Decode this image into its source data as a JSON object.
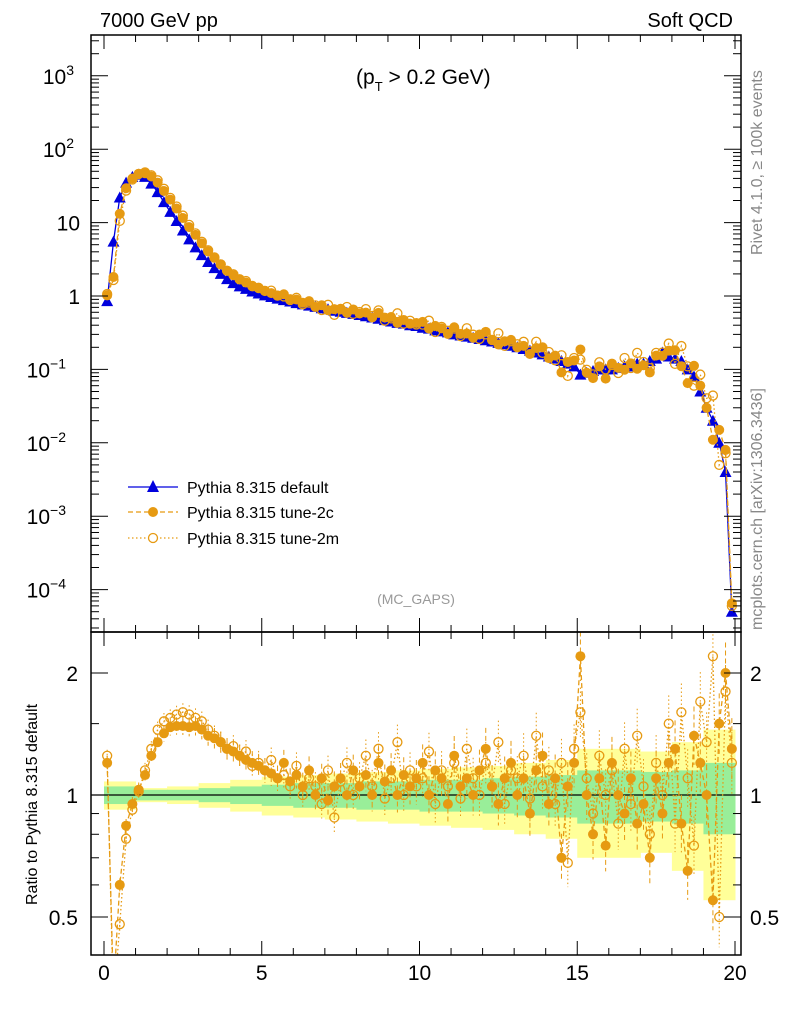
{
  "header": {
    "left": "7000 GeV pp",
    "right": "Soft QCD"
  },
  "cut_label": {
    "main": "(p",
    "sub": "T",
    "rest": " > 0.2 GeV)"
  },
  "analysis_label": "(MC_GAPS)",
  "side_labels": {
    "rivet": "Rivet 4.1.0, ≥ 100k events",
    "mcplots": "mcplots.cern.ch [arXiv:1306.3436]"
  },
  "colors": {
    "default": "#0000dd",
    "tune": "#e69a12",
    "band_yellow": "#ffff99",
    "band_green": "#99ee99"
  },
  "chart_data": {
    "type": "line",
    "xlim": [
      -0.4,
      20.2
    ],
    "ylim_main": [
      3e-05,
      3000
    ],
    "ylim_ratio": [
      0.4,
      2.5
    ],
    "yscale": "log",
    "ylabel_ratio": "Ratio to Pythia 8.315 default",
    "x_ticks": [
      "0",
      "5",
      "10",
      "15",
      "20"
    ],
    "y_ticks_main": [
      {
        "base": "10",
        "exp": "3",
        "value": 1000
      },
      {
        "base": "10",
        "exp": "2",
        "value": 100
      },
      {
        "base": "10",
        "exp": "",
        "value": 10
      },
      {
        "base": "1",
        "exp": "",
        "value": 1
      },
      {
        "base": "10",
        "exp": "−1",
        "value": 0.1
      },
      {
        "base": "10",
        "exp": "−2",
        "value": 0.01
      },
      {
        "base": "10",
        "exp": "−3",
        "value": 0.001
      },
      {
        "base": "10",
        "exp": "−4",
        "value": 0.0001
      }
    ],
    "y_ticks_ratio": [
      {
        "label": "2",
        "value": 2
      },
      {
        "label": "1",
        "value": 1
      },
      {
        "label": "0.5",
        "value": 0.5
      }
    ],
    "legend_placement": "bottom-left",
    "x_start": 0.1,
    "x_step": 0.2,
    "series": [
      {
        "name": "Pythia 8.315 default",
        "marker": "triangle",
        "values": [
          0.85,
          5.5,
          22,
          35,
          42,
          45,
          42,
          34,
          26,
          19,
          14,
          10.5,
          7.8,
          5.9,
          4.6,
          3.6,
          2.9,
          2.4,
          2.0,
          1.7,
          1.5,
          1.35,
          1.25,
          1.15,
          1.08,
          1.02,
          0.97,
          0.92,
          0.88,
          0.84,
          0.8,
          0.77,
          0.74,
          0.71,
          0.68,
          0.66,
          0.63,
          0.61,
          0.59,
          0.57,
          0.55,
          0.53,
          0.51,
          0.49,
          0.47,
          0.45,
          0.43,
          0.42,
          0.4,
          0.39,
          0.37,
          0.36,
          0.34,
          0.33,
          0.32,
          0.3,
          0.29,
          0.28,
          0.27,
          0.26,
          0.25,
          0.24,
          0.23,
          0.22,
          0.21,
          0.2,
          0.19,
          0.18,
          0.17,
          0.16,
          0.15,
          0.14,
          0.13,
          0.12,
          0.11,
          0.085,
          0.09,
          0.095,
          0.1,
          0.1,
          0.1,
          0.105,
          0.11,
          0.11,
          0.12,
          0.12,
          0.13,
          0.14,
          0.17,
          0.15,
          0.14,
          0.13,
          0.1,
          0.08,
          0.05,
          0.03,
          0.02,
          0.01,
          0.004,
          5e-05
        ]
      },
      {
        "name": "Pythia 8.315 tune-2c",
        "marker": "filled-circle",
        "ratio": [
          1.2,
          0.33,
          0.6,
          0.84,
          0.95,
          1.03,
          1.12,
          1.25,
          1.35,
          1.42,
          1.47,
          1.48,
          1.48,
          1.47,
          1.48,
          1.45,
          1.4,
          1.38,
          1.35,
          1.3,
          1.28,
          1.25,
          1.22,
          1.2,
          1.18,
          1.15,
          1.13,
          1.1,
          1.2,
          1.08,
          1.12,
          1.05,
          1.15,
          1.0,
          1.1,
          0.97,
          1.05,
          1.1,
          1.0,
          1.15,
          1.05,
          1.12,
          1.0,
          1.2,
          1.08,
          1.15,
          1.0,
          1.12,
          1.05,
          1.1,
          1.2,
          1.0,
          1.15,
          1.1,
          0.95,
          1.25,
          1.05,
          1.1,
          1.0,
          1.15,
          1.3,
          1.05,
          0.95,
          1.1,
          1.2,
          1.0,
          1.1,
          0.9,
          1.15,
          1.25,
          0.95,
          1.1,
          0.7,
          1.05,
          1.2,
          2.2,
          1.0,
          0.8,
          1.1,
          0.75,
          1.2,
          1.0,
          0.9,
          1.1,
          0.85,
          0.95,
          0.7,
          1.1,
          0.9,
          1.2,
          1.3,
          0.85,
          0.65,
          1.4,
          1.2,
          1.0,
          0.55,
          1.5,
          2.0,
          1.3
        ]
      },
      {
        "name": "Pythia 8.315 tune-2m",
        "marker": "open-circle",
        "ratio": [
          1.25,
          0.3,
          0.48,
          0.78,
          0.92,
          1.02,
          1.15,
          1.3,
          1.45,
          1.52,
          1.55,
          1.58,
          1.6,
          1.58,
          1.55,
          1.52,
          1.45,
          1.4,
          1.35,
          1.3,
          1.32,
          1.25,
          1.28,
          1.18,
          1.2,
          1.15,
          1.22,
          1.1,
          1.12,
          1.05,
          1.18,
          1.0,
          1.1,
          1.05,
          0.95,
          1.15,
          0.88,
          1.08,
          1.2,
          1.0,
          1.1,
          1.25,
          1.05,
          1.3,
          0.98,
          1.1,
          1.35,
          1.0,
          1.15,
          1.05,
          1.1,
          1.28,
          0.95,
          1.15,
          1.05,
          1.2,
          0.98,
          1.3,
          1.1,
          1.0,
          1.2,
          1.05,
          1.35,
          0.95,
          1.15,
          1.1,
          1.25,
          0.98,
          1.4,
          1.05,
          1.15,
          0.95,
          1.2,
          0.68,
          1.3,
          1.6,
          1.1,
          0.9,
          1.25,
          1.0,
          1.15,
          0.85,
          1.3,
          0.95,
          1.4,
          1.05,
          0.8,
          1.2,
          1.0,
          1.5,
          0.85,
          1.6,
          1.1,
          0.75,
          1.7,
          1.35,
          2.2,
          0.5,
          1.8,
          1.2
        ]
      }
    ],
    "band_x": [
      0,
      1,
      2,
      3,
      4,
      5,
      6,
      7,
      8,
      9,
      10,
      11,
      12,
      13,
      14,
      15,
      16,
      17,
      18,
      19,
      20
    ],
    "band_green_halfwidth": [
      0.05,
      0.03,
      0.03,
      0.04,
      0.05,
      0.06,
      0.07,
      0.07,
      0.08,
      0.08,
      0.09,
      0.09,
      0.1,
      0.11,
      0.12,
      0.15,
      0.15,
      0.14,
      0.15,
      0.2,
      0.3
    ],
    "band_yellow_halfwidth": [
      0.08,
      0.04,
      0.05,
      0.07,
      0.09,
      0.11,
      0.12,
      0.13,
      0.14,
      0.15,
      0.16,
      0.17,
      0.18,
      0.2,
      0.22,
      0.3,
      0.3,
      0.28,
      0.35,
      0.45,
      0.6
    ]
  }
}
